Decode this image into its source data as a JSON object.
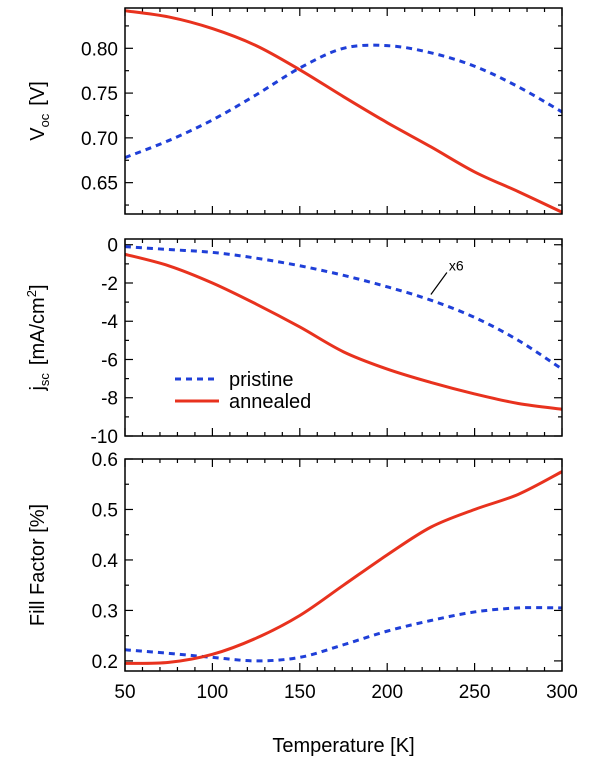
{
  "chart_data": [
    {
      "type": "line",
      "panel": "top",
      "ylabel": "V_oc  [V]",
      "ylabel_main": "V",
      "ylabel_sub": "oc",
      "ylabel_unit": "[V]",
      "xlim": [
        50,
        300
      ],
      "ylim": [
        0.615,
        0.845
      ],
      "yticks": [
        0.65,
        0.7,
        0.75,
        0.8
      ],
      "ytick_labels": [
        "0.65",
        "0.70",
        "0.75",
        "0.80"
      ],
      "series": [
        {
          "name": "pristine",
          "color": "#1f3fd8",
          "style": "dashed",
          "x": [
            50,
            75,
            100,
            125,
            150,
            175,
            200,
            225,
            250,
            275,
            300
          ],
          "y": [
            0.678,
            0.697,
            0.72,
            0.748,
            0.778,
            0.8,
            0.803,
            0.795,
            0.78,
            0.757,
            0.729
          ]
        },
        {
          "name": "annealed",
          "color": "#e8321e",
          "style": "solid",
          "x": [
            50,
            75,
            100,
            125,
            150,
            175,
            200,
            225,
            250,
            275,
            300
          ],
          "y": [
            0.842,
            0.835,
            0.822,
            0.803,
            0.776,
            0.746,
            0.717,
            0.69,
            0.662,
            0.64,
            0.617
          ]
        }
      ]
    },
    {
      "type": "line",
      "panel": "middle",
      "ylabel": "j_sc  [mA/cm^2]",
      "ylabel_main": "j",
      "ylabel_sub": "sc",
      "ylabel_unit_pre": "[mA/cm",
      "ylabel_unit_sup": "2",
      "ylabel_unit_post": "]",
      "xlim": [
        50,
        300
      ],
      "ylim": [
        -10,
        0.3
      ],
      "yticks": [
        0,
        -2,
        -4,
        -6,
        -8,
        -10
      ],
      "ytick_labels": [
        "0",
        "-2",
        "-4",
        "-6",
        "-8",
        "-10"
      ],
      "annotation": {
        "text": "x6",
        "x": 225,
        "y": -2.6
      },
      "series": [
        {
          "name": "pristine",
          "color": "#1f3fd8",
          "style": "dashed",
          "x": [
            50,
            75,
            100,
            125,
            150,
            175,
            200,
            225,
            250,
            275,
            300
          ],
          "y": [
            -0.1,
            -0.25,
            -0.4,
            -0.7,
            -1.1,
            -1.6,
            -2.2,
            -2.9,
            -3.8,
            -5.0,
            -6.5
          ]
        },
        {
          "name": "annealed",
          "color": "#e8321e",
          "style": "solid",
          "x": [
            50,
            75,
            100,
            125,
            150,
            175,
            200,
            225,
            250,
            275,
            300
          ],
          "y": [
            -0.5,
            -1.1,
            -2.0,
            -3.1,
            -4.3,
            -5.6,
            -6.5,
            -7.2,
            -7.8,
            -8.3,
            -8.6
          ]
        }
      ],
      "legend": {
        "placement": "lower-left",
        "entries": [
          {
            "label": "pristine",
            "color": "#1f3fd8",
            "style": "dashed"
          },
          {
            "label": "annealed",
            "color": "#e8321e",
            "style": "solid"
          }
        ]
      }
    },
    {
      "type": "line",
      "panel": "bottom",
      "ylabel": "Fill Factor  [%]",
      "xlabel": "Temperature  [K]",
      "xlim": [
        50,
        300
      ],
      "ylim": [
        0.18,
        0.6
      ],
      "yticks": [
        0.2,
        0.3,
        0.4,
        0.5,
        0.6
      ],
      "ytick_labels": [
        "0.2",
        "0.3",
        "0.4",
        "0.5",
        "0.6"
      ],
      "xticks": [
        50,
        100,
        150,
        200,
        250,
        300
      ],
      "xtick_labels": [
        "50",
        "100",
        "150",
        "200",
        "250",
        "300"
      ],
      "series": [
        {
          "name": "pristine",
          "color": "#1f3fd8",
          "style": "dashed",
          "x": [
            50,
            75,
            100,
            125,
            150,
            175,
            200,
            225,
            250,
            275,
            300
          ],
          "y": [
            0.222,
            0.215,
            0.207,
            0.2,
            0.207,
            0.232,
            0.259,
            0.28,
            0.297,
            0.305,
            0.305
          ]
        },
        {
          "name": "annealed",
          "color": "#e8321e",
          "style": "solid",
          "x": [
            50,
            75,
            100,
            125,
            150,
            175,
            200,
            225,
            250,
            275,
            300
          ],
          "y": [
            0.195,
            0.197,
            0.213,
            0.245,
            0.29,
            0.35,
            0.41,
            0.465,
            0.5,
            0.53,
            0.575
          ]
        }
      ]
    }
  ]
}
